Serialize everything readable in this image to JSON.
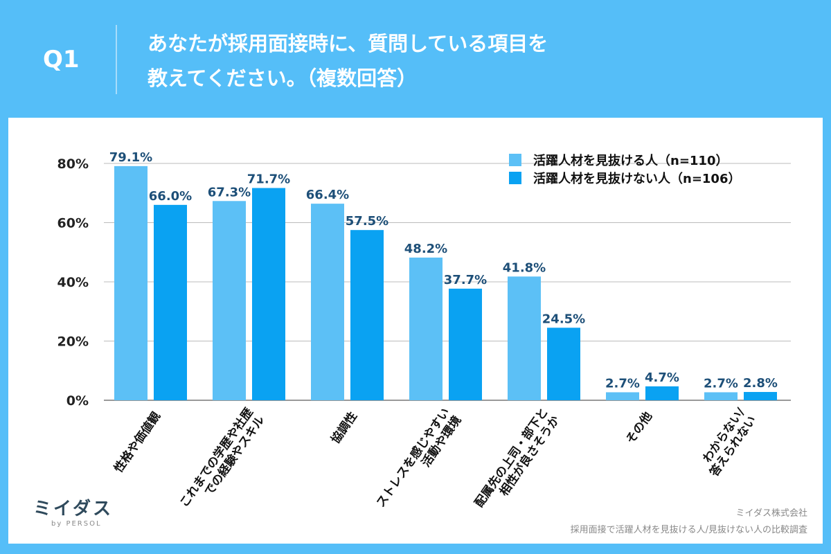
{
  "header": {
    "q_label": "Q1",
    "title_line1": "あなたが採用面接時に、質問している項目を",
    "title_line2": "教えてください。（複数回答）"
  },
  "footer": {
    "logo_text": "ミイダス",
    "logo_sub": "by PERSOL",
    "company": "ミイダス株式会社",
    "survey": "採用面接で活躍人材を見抜ける人/見抜けない人の比較調査"
  },
  "colors": {
    "series1": "#5cc0f6",
    "series2": "#0aa2f2",
    "background": "#55bef8"
  },
  "chart_data": {
    "type": "bar",
    "categories": [
      [
        "性格や価値観"
      ],
      [
        "これまでの学歴や社歴",
        "での経験やスキル"
      ],
      [
        "協調性"
      ],
      [
        "ストレスを感じやすい",
        "活動や環境"
      ],
      [
        "配属先の上司・部下と",
        "相性が良さそうか"
      ],
      [
        "その他"
      ],
      [
        "わからない/",
        "答えられない"
      ]
    ],
    "series": [
      {
        "name": "活躍人材を見抜ける人（n=110）",
        "values": [
          79.1,
          67.3,
          66.4,
          48.2,
          41.8,
          2.7,
          2.7
        ]
      },
      {
        "name": "活躍人材を見抜けない人（n=106）",
        "values": [
          66.0,
          71.7,
          57.5,
          37.7,
          24.5,
          4.7,
          2.8
        ]
      }
    ],
    "yticks": [
      "0%",
      "20%",
      "40%",
      "60%",
      "80%"
    ],
    "ylim": [
      0,
      80
    ],
    "grid": true,
    "legend": "top-right"
  }
}
